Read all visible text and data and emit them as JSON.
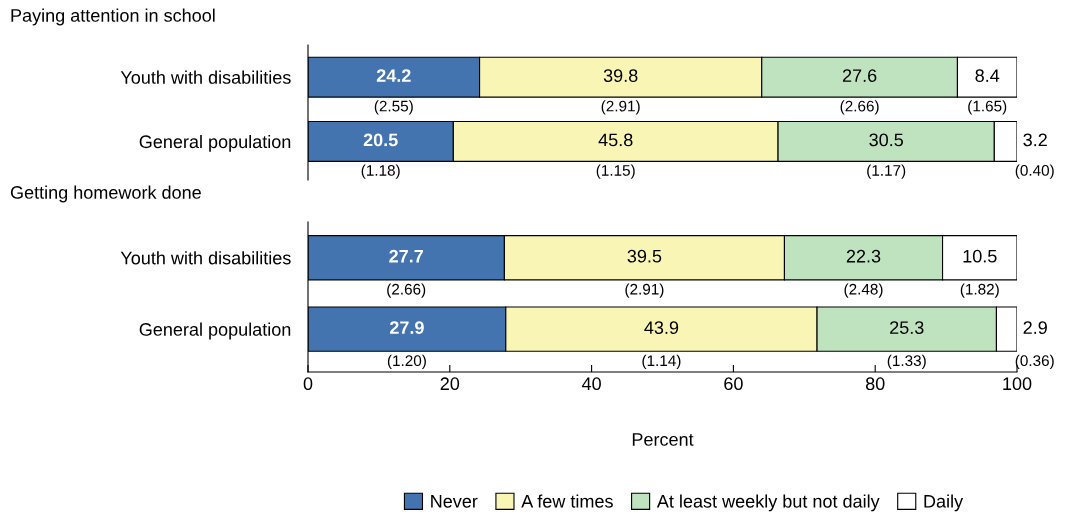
{
  "chart_data": [
    {
      "type": "bar",
      "orientation": "horizontal",
      "stacked": true,
      "title": "Paying attention in school",
      "categories": [
        "Youth with disabilities",
        "General population"
      ],
      "xlim": [
        0,
        100
      ],
      "xticks": [
        0,
        20,
        40,
        60,
        80,
        100
      ],
      "tick_labels": "y",
      "grid": false,
      "legend": false,
      "series": [
        {
          "color": "#4474b0",
          "values": [
            24.2,
            20.5
          ],
          "value_labels": [
            "24.2\n(2.55)",
            "20.5\n(1.18)"
          ]
        },
        {
          "color": "#f9f6b5",
          "values": [
            39.8,
            45.8
          ],
          "value_labels": [
            "39.8\n(2.91)",
            "45.8\n(1.15)"
          ]
        },
        {
          "color": "#bfe3bf",
          "values": [
            27.6,
            30.5
          ],
          "value_labels": [
            "27.6\n(2.66)",
            "30.5\n(1.17)"
          ]
        },
        {
          "color": "#ffffff",
          "values": [
            8.4,
            3.2
          ],
          "value_labels": [
            "8.4\n(1.65)",
            "3.2\n(0.40)"
          ]
        }
      ]
    },
    {
      "type": "bar",
      "orientation": "horizontal",
      "stacked": true,
      "title": "Getting homework done",
      "xlabel": "Percent",
      "categories": [
        "Youth with disabilities",
        "General population"
      ],
      "xlim": [
        0,
        100
      ],
      "xticks": [
        0,
        20,
        40,
        60,
        80,
        100
      ],
      "grid": false,
      "legend": "bottom",
      "series": [
        {
          "name": "Never",
          "color": "#4474b0",
          "values": [
            27.7,
            27.9
          ],
          "value_labels": [
            "27.7\n(2.66)",
            "27.9\n(1.20)"
          ]
        },
        {
          "name": "A few times",
          "color": "#f9f6b5",
          "values": [
            39.5,
            43.9
          ],
          "value_labels": [
            "39.5\n(2.91)",
            "43.9\n(1.14)"
          ]
        },
        {
          "name": "At least weekly but not daily",
          "color": "#bfe3bf",
          "values": [
            22.3,
            25.3
          ],
          "value_labels": [
            "22.3\n(2.48)",
            "25.3\n(1.33)"
          ]
        },
        {
          "name": "Daily",
          "color": "#ffffff",
          "values": [
            10.5,
            2.9
          ],
          "value_labels": [
            "10.5\n(1.82)",
            "2.9\n(0.36)"
          ]
        }
      ]
    }
  ]
}
